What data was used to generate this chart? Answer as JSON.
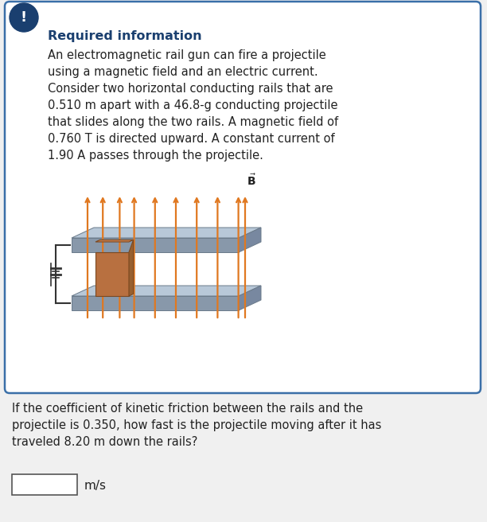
{
  "title": "Required information",
  "body_text": "An electromagnetic rail gun can fire a projectile\nusing a magnetic field and an electric current.\nConsider two horizontal conducting rails that are\n0.510 m apart with a 46.8-g conducting projectile\nthat slides along the two rails. A magnetic field of\n0.760 T is directed upward. A constant current of\n1.90 A passes through the projectile.",
  "question_text": "If the coefficient of kinetic friction between the rails and the\nprojectile is 0.350, how fast is the projectile moving after it has\ntraveled 8.20 m down the rails?",
  "answer_unit": "m/s",
  "box_bg": "#ffffff",
  "box_border": "#3a6fa8",
  "icon_bg": "#1a3f6f",
  "icon_text": "!",
  "title_color": "#1a3f6f",
  "body_color": "#222222",
  "question_color": "#222222",
  "arrow_color": "#e07820",
  "bg_color": "#f0f0f0",
  "rail_top_color": "#b8c8d8",
  "rail_front_color": "#8898aa",
  "rail_side_color": "#7888a0",
  "proj_top_color": "#c88050",
  "proj_front_color": "#b87040",
  "proj_side_color": "#986030",
  "wire_color": "#333333"
}
